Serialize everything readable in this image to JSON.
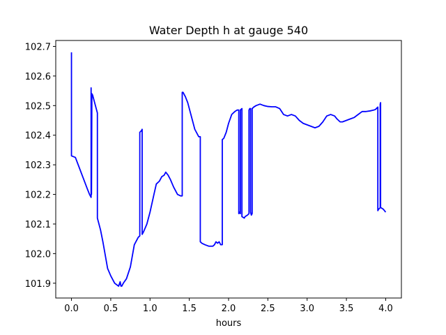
{
  "chart_data": {
    "type": "line",
    "title": "Water Depth h at gauge 540",
    "xlabel": "hours",
    "ylabel": "",
    "xlim": [
      -0.2,
      4.2
    ],
    "ylim": [
      101.85,
      102.72
    ],
    "x_ticks": [
      0.0,
      0.5,
      1.0,
      1.5,
      2.0,
      2.5,
      3.0,
      3.5,
      4.0
    ],
    "x_tick_labels": [
      "0.0",
      "0.5",
      "1.0",
      "1.5",
      "2.0",
      "2.5",
      "3.0",
      "3.5",
      "4.0"
    ],
    "y_ticks": [
      101.9,
      102.0,
      102.1,
      102.2,
      102.3,
      102.4,
      102.5,
      102.6,
      102.7
    ],
    "y_tick_labels": [
      "101.9",
      "102.0",
      "102.1",
      "102.2",
      "102.3",
      "102.4",
      "102.5",
      "102.6",
      "102.7"
    ],
    "grid": false,
    "colors": {
      "line": "#0000ff",
      "axes": "#000000",
      "background": "#ffffff"
    },
    "series": [
      {
        "x": [
          0.0,
          0.0,
          0.003,
          0.05,
          0.1,
          0.15,
          0.2,
          0.23,
          0.25,
          0.25,
          0.255,
          0.26,
          0.26,
          0.27,
          0.3,
          0.33,
          0.33,
          0.37,
          0.4,
          0.43,
          0.46,
          0.5,
          0.55,
          0.6,
          0.62,
          0.63,
          0.64,
          0.66,
          0.7,
          0.75,
          0.8,
          0.85,
          0.87,
          0.87,
          0.89,
          0.9,
          0.9,
          0.92,
          0.96,
          1.0,
          1.05,
          1.08,
          1.12,
          1.15,
          1.18,
          1.2,
          1.23,
          1.26,
          1.3,
          1.35,
          1.39,
          1.41,
          1.41,
          1.42,
          1.45,
          1.48,
          1.52,
          1.57,
          1.62,
          1.64,
          1.64,
          1.66,
          1.7,
          1.75,
          1.8,
          1.82,
          1.84,
          1.86,
          1.88,
          1.9,
          1.92,
          1.92,
          1.94,
          1.97,
          2.0,
          2.04,
          2.08,
          2.11,
          2.13,
          2.13,
          2.14,
          2.15,
          2.15,
          2.17,
          2.17,
          2.2,
          2.21,
          2.24,
          2.26,
          2.26,
          2.27,
          2.28,
          2.28,
          2.29,
          2.3,
          2.3,
          2.32,
          2.35,
          2.4,
          2.45,
          2.5,
          2.55,
          2.6,
          2.65,
          2.7,
          2.75,
          2.8,
          2.85,
          2.9,
          2.95,
          3.0,
          3.05,
          3.1,
          3.15,
          3.2,
          3.25,
          3.3,
          3.35,
          3.38,
          3.42,
          3.45,
          3.5,
          3.55,
          3.6,
          3.65,
          3.7,
          3.75,
          3.8,
          3.85,
          3.87,
          3.9,
          3.9,
          3.91,
          3.93,
          3.93,
          3.935,
          3.935,
          3.94,
          3.97,
          4.0
        ],
        "y": [
          102.68,
          102.33,
          102.33,
          102.325,
          102.29,
          102.255,
          102.22,
          102.2,
          102.19,
          102.56,
          102.2,
          102.54,
          102.54,
          102.535,
          102.505,
          102.475,
          102.12,
          102.08,
          102.04,
          101.995,
          101.95,
          101.925,
          101.9,
          101.89,
          101.905,
          101.89,
          101.89,
          101.9,
          101.915,
          101.955,
          102.03,
          102.055,
          102.06,
          102.41,
          102.415,
          102.42,
          102.065,
          102.075,
          102.1,
          102.14,
          102.2,
          102.235,
          102.245,
          102.26,
          102.265,
          102.275,
          102.265,
          102.25,
          102.225,
          102.2,
          102.195,
          102.195,
          102.545,
          102.545,
          102.53,
          102.51,
          102.47,
          102.42,
          102.395,
          102.395,
          102.04,
          102.035,
          102.03,
          102.025,
          102.025,
          102.03,
          102.04,
          102.035,
          102.04,
          102.03,
          102.03,
          102.385,
          102.39,
          102.41,
          102.44,
          102.47,
          102.48,
          102.485,
          102.485,
          102.135,
          102.14,
          102.135,
          102.485,
          102.49,
          102.125,
          102.12,
          102.125,
          102.13,
          102.135,
          102.485,
          102.49,
          102.49,
          102.14,
          102.13,
          102.135,
          102.49,
          102.495,
          102.5,
          102.505,
          102.5,
          102.497,
          102.496,
          102.496,
          102.49,
          102.47,
          102.465,
          102.47,
          102.465,
          102.45,
          102.44,
          102.435,
          102.43,
          102.425,
          102.43,
          102.445,
          102.465,
          102.47,
          102.465,
          102.455,
          102.445,
          102.445,
          102.45,
          102.455,
          102.46,
          102.47,
          102.48,
          102.48,
          102.482,
          102.485,
          102.487,
          102.495,
          102.145,
          102.15,
          102.155,
          102.505,
          102.51,
          102.155,
          102.155,
          102.15,
          102.14
        ]
      }
    ]
  }
}
